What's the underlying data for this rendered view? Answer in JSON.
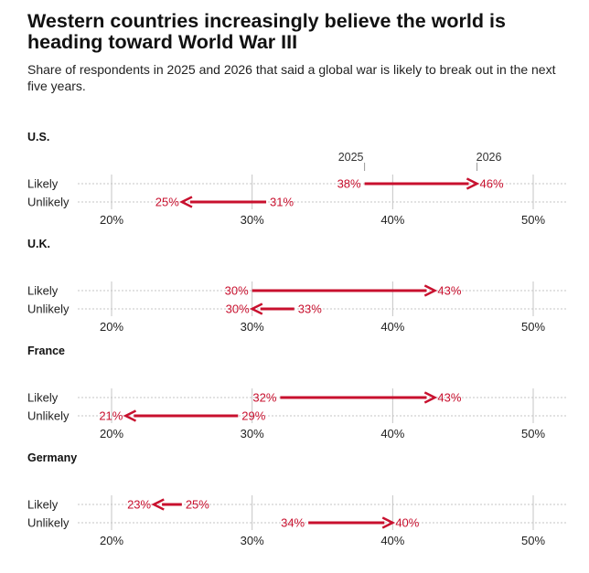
{
  "title": "Western countries increasingly believe the world is heading toward World War III",
  "subtitle": "Share of respondents in 2025 and 2026 that said a global war is likely to break out in the next five years.",
  "colors": {
    "accent": "#c8102e",
    "grid": "#c4c4c4",
    "axis": "#999999"
  },
  "chart_data": {
    "type": "dumbbell-arrow",
    "legend": {
      "start_label": "2025",
      "end_label": "2026"
    },
    "x_ticks": [
      20,
      30,
      40,
      50
    ],
    "tick_suffix": "%",
    "xlim": [
      20,
      50
    ],
    "panels": [
      {
        "country": "U.S.",
        "rows": [
          {
            "label": "Likely",
            "from": 38,
            "to": 46
          },
          {
            "label": "Unlikely",
            "from": 31,
            "to": 25
          }
        ]
      },
      {
        "country": "U.K.",
        "rows": [
          {
            "label": "Likely",
            "from": 30,
            "to": 43
          },
          {
            "label": "Unlikely",
            "from": 33,
            "to": 30
          }
        ]
      },
      {
        "country": "France",
        "rows": [
          {
            "label": "Likely",
            "from": 32,
            "to": 43
          },
          {
            "label": "Unlikely",
            "from": 29,
            "to": 21
          }
        ]
      },
      {
        "country": "Germany",
        "rows": [
          {
            "label": "Likely",
            "from": 25,
            "to": 23
          },
          {
            "label": "Unlikely",
            "from": 34,
            "to": 40
          }
        ]
      }
    ]
  }
}
